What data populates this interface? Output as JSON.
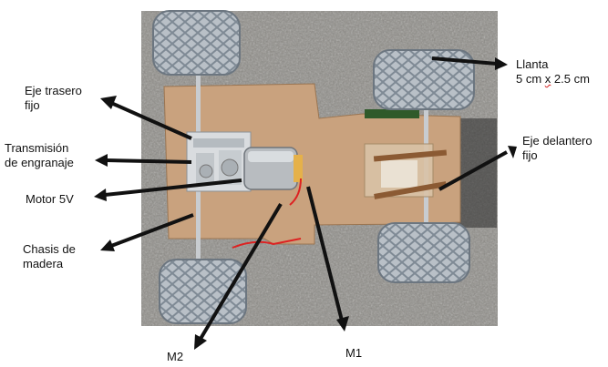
{
  "labels": {
    "eje_trasero": [
      "Eje trasero",
      "fijo"
    ],
    "transmision": [
      "Transmisión",
      "de engranaje"
    ],
    "motor": "Motor 5V",
    "chasis": [
      "Chasis de",
      "madera"
    ],
    "m2": "M2",
    "m1": "M1",
    "llanta": "Llanta",
    "llanta_size_a": "5 cm ",
    "llanta_size_x": "x",
    "llanta_size_b": " 2.5 cm",
    "eje_delantero": [
      "Eje delantero",
      "fijo"
    ]
  },
  "colors": {
    "gravel": "#8e8c87",
    "wood": "#c9a27e",
    "tire": "#b9c0c7",
    "arrow": "#111111",
    "motor": "#b8bcc0"
  }
}
